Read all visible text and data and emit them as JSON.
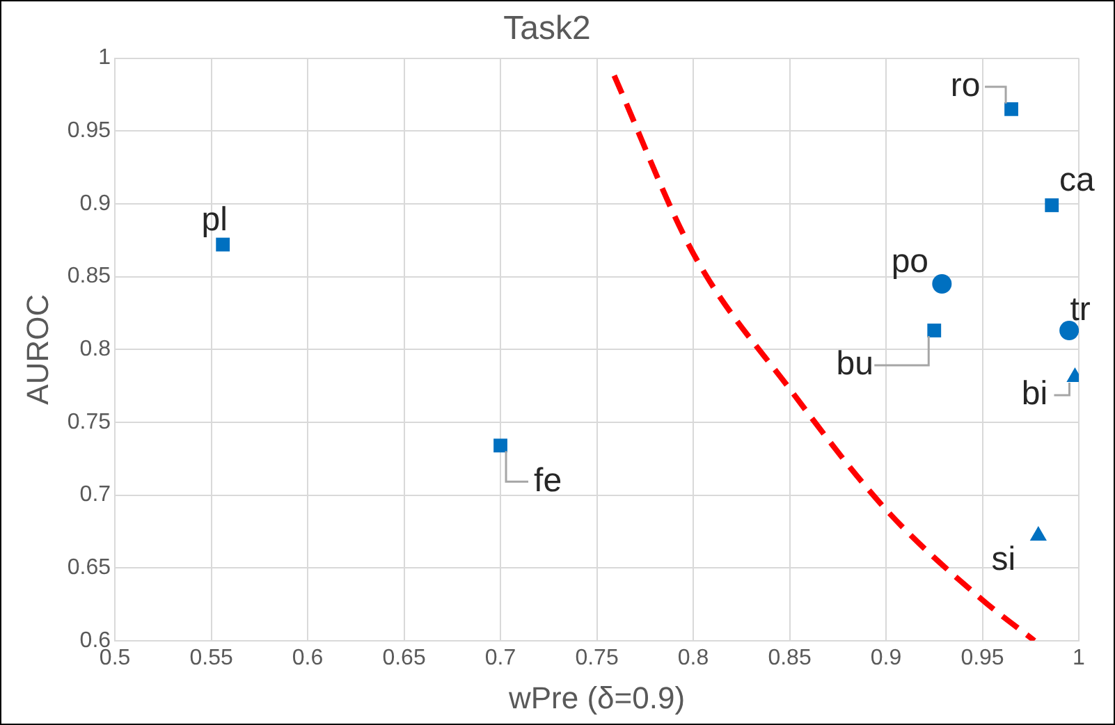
{
  "chart_data": {
    "type": "scatter",
    "title": "Task2",
    "xlabel": "wPre (δ=0.9)",
    "ylabel": "AUROC",
    "xlim": [
      0.5,
      1
    ],
    "xticks": [
      0.5,
      0.55,
      0.6,
      0.65,
      0.7,
      0.75,
      0.8,
      0.85,
      0.9,
      0.95,
      1
    ],
    "ylim": [
      0.6,
      1
    ],
    "yticks": [
      0.6,
      0.65,
      0.7,
      0.75,
      0.8,
      0.85,
      0.9,
      0.95,
      1
    ],
    "grid": true,
    "legend": false,
    "series": [
      {
        "type": "scatter",
        "marker": "square",
        "color": "#0070c0",
        "x": [
          0.556,
          0.7,
          0.925,
          0.965,
          0.986
        ],
        "values": [
          0.872,
          0.734,
          0.813,
          0.965,
          0.899
        ]
      },
      {
        "type": "scatter",
        "marker": "circle",
        "color": "#0070c0",
        "x": [
          0.929,
          0.995
        ],
        "values": [
          0.845,
          0.813
        ]
      },
      {
        "type": "scatter",
        "marker": "triangle",
        "color": "#0070c0",
        "x": [
          0.998,
          0.979
        ],
        "values": [
          0.781,
          0.672
        ]
      },
      {
        "type": "line",
        "marker": "none",
        "line_style": "dashed",
        "color": "#ff0000",
        "x": [
          0.759,
          0.8,
          0.85,
          0.9,
          0.95,
          0.977
        ],
        "values": [
          0.988,
          0.866,
          0.773,
          0.69,
          0.628,
          0.6
        ]
      }
    ],
    "annotations": [
      {
        "text": "pl",
        "x": 0.556,
        "y": 0.872
      },
      {
        "text": "fe",
        "x": 0.7,
        "y": 0.734
      },
      {
        "text": "bu",
        "x": 0.925,
        "y": 0.813
      },
      {
        "text": "po",
        "x": 0.929,
        "y": 0.845
      },
      {
        "text": "ro",
        "x": 0.965,
        "y": 0.965
      },
      {
        "text": "ca",
        "x": 0.986,
        "y": 0.899
      },
      {
        "text": "tr",
        "x": 0.995,
        "y": 0.813
      },
      {
        "text": "bi",
        "x": 0.998,
        "y": 0.781
      },
      {
        "text": "si",
        "x": 0.979,
        "y": 0.672
      }
    ]
  }
}
